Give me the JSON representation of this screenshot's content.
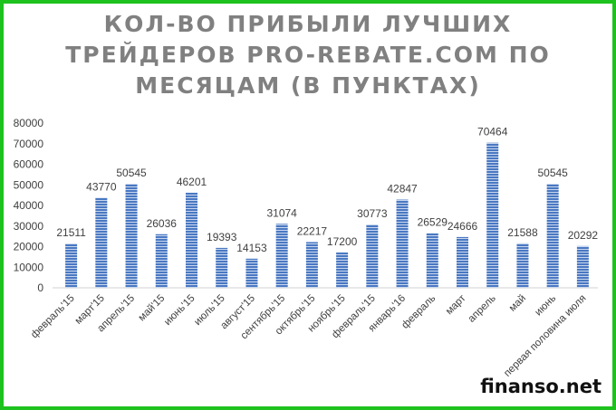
{
  "chart_data": {
    "type": "bar",
    "title_lines": [
      "КОЛ-ВО ПРИБЫЛИ ЛУЧШИХ",
      "ТРЕЙДЕРОВ PRO-REBATE.COM ПО",
      "МЕСЯЦАМ (В ПУНКТАХ)"
    ],
    "categories": [
      "февраль'15",
      "март'15",
      "апрель'15",
      "май'15",
      "июнь'15",
      "июль'15",
      "август'15",
      "сентябрь'15",
      "октябрь'15",
      "ноябрь'15",
      "февраль'15",
      "январь'16",
      "февраль",
      "март",
      "апрель",
      "май",
      "июнь",
      "первая половина июля"
    ],
    "values": [
      21511,
      43770,
      50545,
      26036,
      46201,
      19393,
      14153,
      31074,
      22217,
      17200,
      30773,
      42847,
      26529,
      24666,
      70464,
      21588,
      50545,
      20292
    ],
    "yticks": [
      "0",
      "10000",
      "20000",
      "30000",
      "40000",
      "50000",
      "60000",
      "70000",
      "80000"
    ],
    "ylim": [
      0,
      80000
    ],
    "grid": false,
    "legend": "none",
    "bar_color": "#4a78c2"
  },
  "watermark": "finanso.net"
}
